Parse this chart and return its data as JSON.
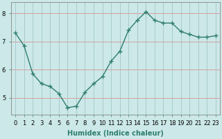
{
  "x": [
    0,
    1,
    2,
    3,
    4,
    5,
    6,
    7,
    8,
    9,
    10,
    11,
    12,
    13,
    14,
    15,
    16,
    17,
    18,
    19,
    20,
    21,
    22,
    23
  ],
  "y": [
    7.3,
    6.85,
    5.85,
    5.5,
    5.4,
    5.15,
    4.65,
    4.7,
    5.2,
    5.5,
    5.75,
    6.3,
    6.65,
    7.4,
    7.75,
    8.05,
    7.75,
    7.65,
    7.65,
    7.35,
    7.25,
    7.15,
    7.15,
    7.2
  ],
  "line_color": "#2e7d6e",
  "marker": "+",
  "markersize": 4,
  "linewidth": 1.0,
  "bg_color": "#cce8e8",
  "grid_color_v": "#b0c8c8",
  "grid_color_h": "#e8b0b0",
  "xlabel": "Humidex (Indice chaleur)",
  "xlabel_fontsize": 7,
  "tick_fontsize": 6,
  "ylim": [
    4.4,
    8.4
  ],
  "yticks": [
    5,
    6,
    7,
    8
  ],
  "xlim": [
    -0.5,
    23.5
  ],
  "title": ""
}
